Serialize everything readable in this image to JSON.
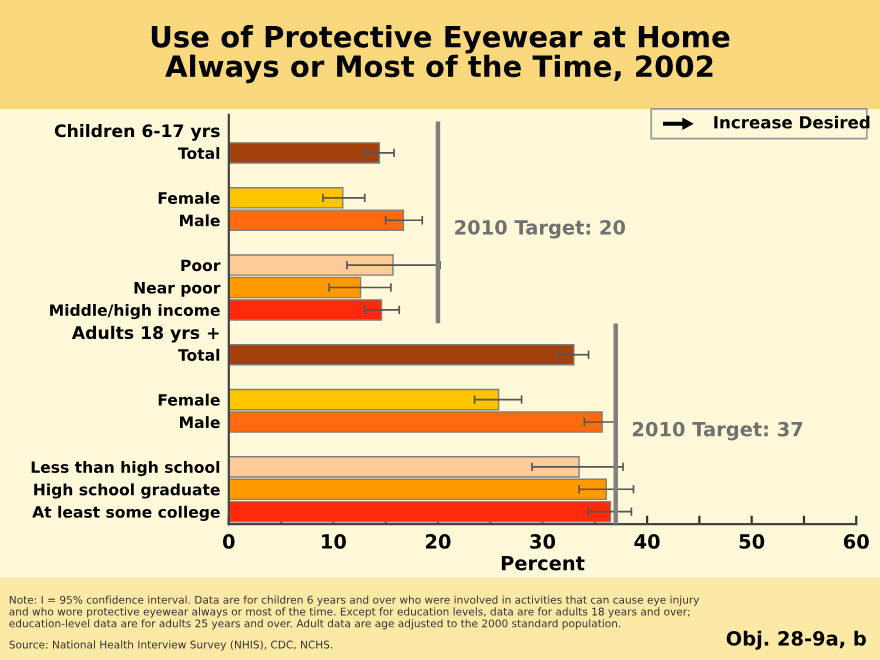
{
  "chart_data": {
    "type": "bar",
    "orientation": "horizontal",
    "title": "Use of Protective Eyewear at Home\nAlways or Most of the Time, 2002",
    "xlabel": "Percent",
    "categories": [
      "Children 6-17 yrs",
      "Total",
      null,
      "Female",
      "Male",
      null,
      "Poor",
      "Near poor",
      "Middle/high income",
      "Adults 18 yrs +",
      "Total",
      null,
      "Female",
      "Male",
      null,
      "Less than high school",
      "High school graduate",
      "At least some college"
    ],
    "values": [
      null,
      14.4,
      null,
      10.9,
      16.7,
      null,
      15.7,
      12.6,
      14.6,
      null,
      33.0,
      null,
      25.8,
      35.7,
      null,
      33.5,
      36.1,
      36.5
    ],
    "colors": [
      null,
      "#a3410c",
      null,
      "#ffc400",
      "#ff6a0f",
      null,
      "#ffcc99",
      "#ff9900",
      "#ff2a0a",
      null,
      "#a3410c",
      null,
      "#ffc400",
      "#ff6a0f",
      null,
      "#ffcc99",
      "#ff9900",
      "#ff2a0a"
    ],
    "errors": [
      null,
      [
        13.0,
        15.8
      ],
      null,
      [
        9.0,
        13.0
      ],
      [
        15.0,
        18.5
      ],
      null,
      [
        11.3,
        20.2
      ],
      [
        9.6,
        15.5
      ],
      [
        13.0,
        16.3
      ],
      null,
      [
        31.6,
        34.4
      ],
      null,
      [
        23.5,
        28.0
      ],
      [
        34.0,
        37.1
      ],
      null,
      [
        29.0,
        37.7
      ],
      [
        33.5,
        38.7
      ],
      [
        34.4,
        38.5
      ]
    ],
    "xlim": [
      0,
      60
    ],
    "xticks": [
      0,
      {
        "value": 5,
        "label": null
      },
      10,
      {
        "value": 15,
        "label": null
      },
      20,
      {
        "value": 25,
        "label": null
      },
      30,
      {
        "value": 35,
        "label": null
      },
      40,
      {
        "value": 45,
        "label": null
      },
      50,
      {
        "value": 55,
        "label": null
      },
      60
    ],
    "ref_lines": [
      {
        "axis": "x",
        "value": 20,
        "label": "2010 Target: 20",
        "color": "#808080"
      },
      {
        "axis": "x",
        "value": 37,
        "label": "2010 Target: 37",
        "color": "#808080"
      }
    ],
    "grid": false,
    "annotations": [
      "Increase Desired",
      "Note: I = 95% confidence interval. Data are for children 6 years and over who were involved in activities that can cause eye injury\nand who wore protective eyewear always or most of the time. Except for education levels, data are for adults 18 years and over;\neducation-level data are for adults 25 years and over. Adult data are age adjusted to the 2000 standard population.",
      "Source: National Health Interview Survey (NHIS), CDC, NCHS.",
      "Obj. 28-9a, b"
    ]
  }
}
